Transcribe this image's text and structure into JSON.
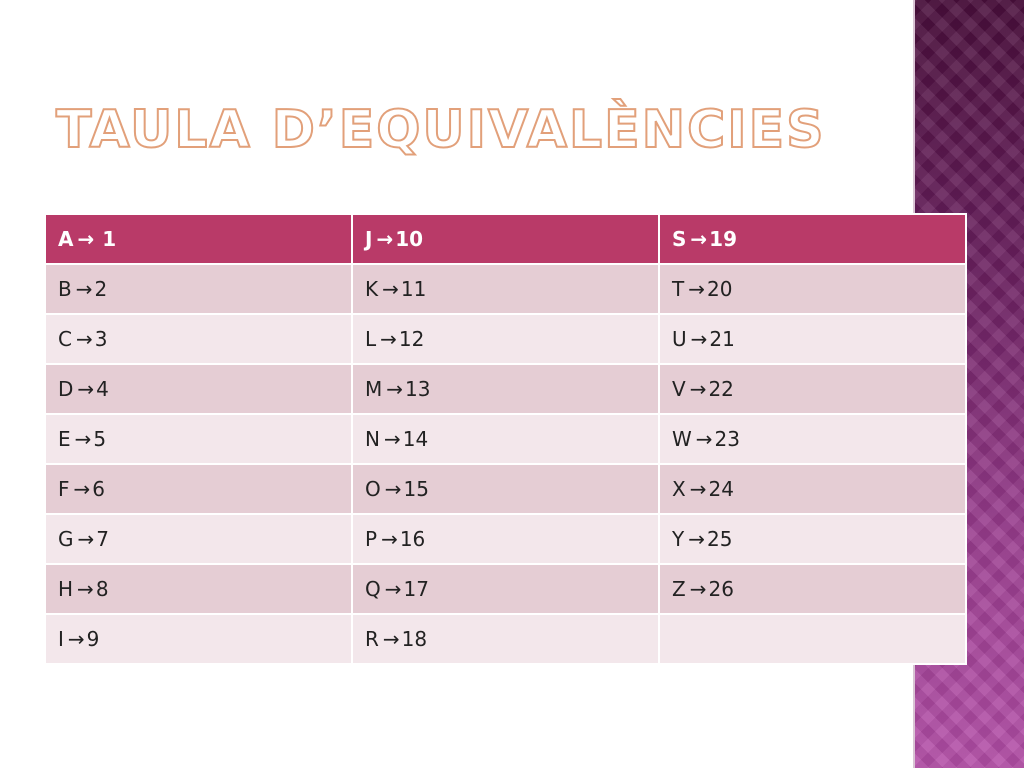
{
  "slide": {
    "title": "Taula d’equivalències",
    "accent_color": "#b93a68",
    "sidebar_color": "#6b2060"
  },
  "table": {
    "rows": [
      [
        {
          "letter": "A",
          "num": "1",
          "spaced": true
        },
        {
          "letter": "J",
          "num": "10"
        },
        {
          "letter": "S",
          "num": "19"
        }
      ],
      [
        {
          "letter": "B",
          "num": "2"
        },
        {
          "letter": "K",
          "num": "11"
        },
        {
          "letter": "T",
          "num": "20"
        }
      ],
      [
        {
          "letter": "C",
          "num": "3"
        },
        {
          "letter": "L",
          "num": "12"
        },
        {
          "letter": "U",
          "num": "21"
        }
      ],
      [
        {
          "letter": "D",
          "num": "4"
        },
        {
          "letter": "M",
          "num": "13"
        },
        {
          "letter": "V",
          "num": "22"
        }
      ],
      [
        {
          "letter": "E",
          "num": "5"
        },
        {
          "letter": "N",
          "num": "14"
        },
        {
          "letter": "W",
          "num": "23"
        }
      ],
      [
        {
          "letter": "F",
          "num": "6"
        },
        {
          "letter": "O",
          "num": "15"
        },
        {
          "letter": "X",
          "num": "24"
        }
      ],
      [
        {
          "letter": "G",
          "num": "7"
        },
        {
          "letter": "P",
          "num": "16"
        },
        {
          "letter": "Y",
          "num": "25"
        }
      ],
      [
        {
          "letter": "H",
          "num": "8"
        },
        {
          "letter": "Q",
          "num": "17"
        },
        {
          "letter": "Z",
          "num": "26"
        }
      ],
      [
        {
          "letter": "I",
          "num": "9"
        },
        {
          "letter": "R",
          "num": "18"
        },
        {
          "letter": "",
          "num": ""
        }
      ]
    ]
  }
}
